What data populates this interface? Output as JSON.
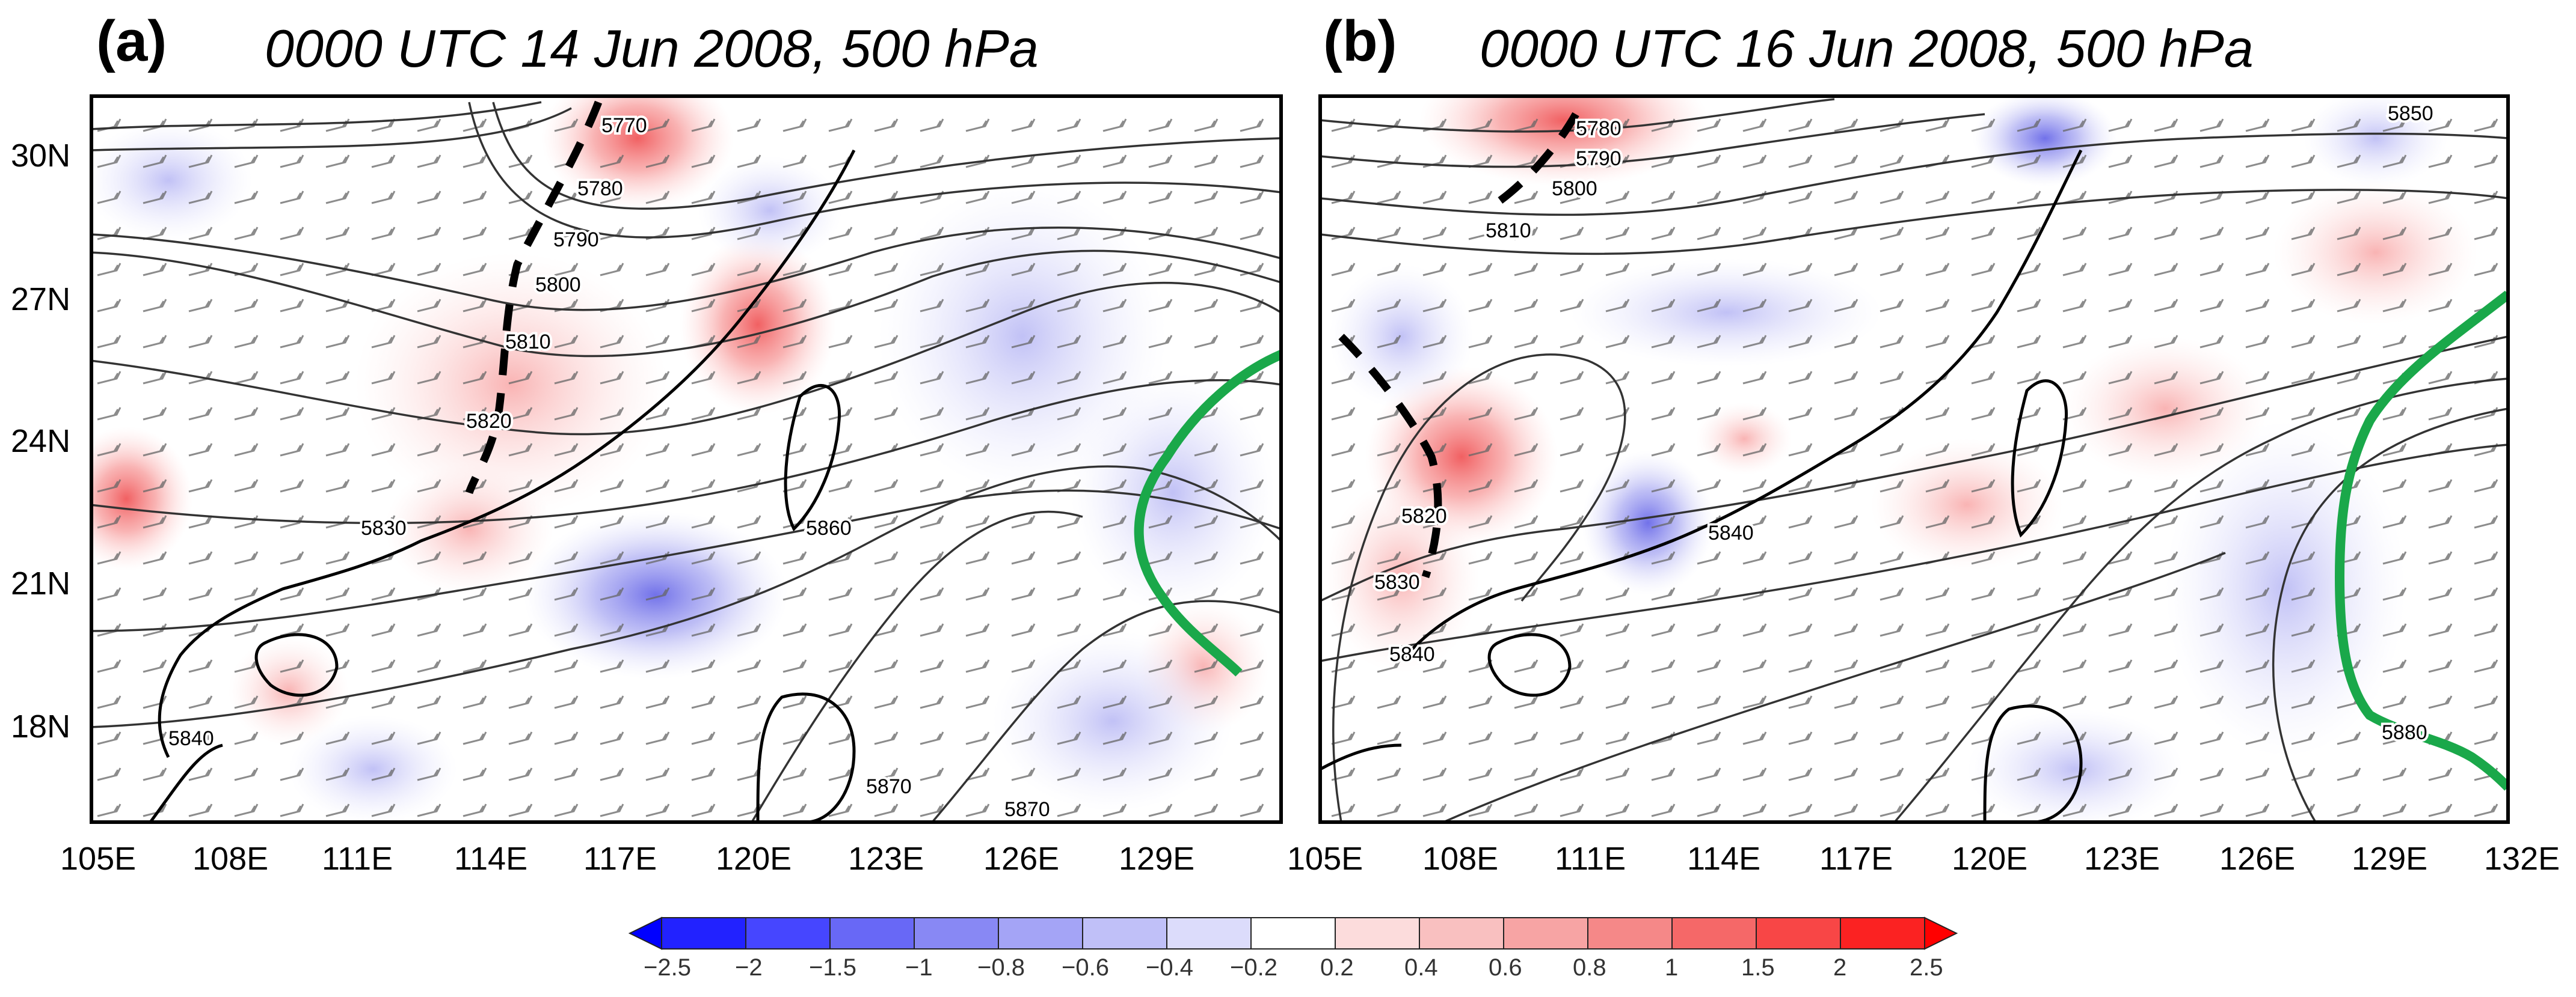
{
  "panels": [
    {
      "letter": "(a)",
      "title": "0000 UTC 14 Jun 2008, 500 hPa",
      "contour_labels": [
        "5770",
        "5780",
        "5790",
        "5800",
        "5810",
        "5820",
        "5830",
        "5840",
        "5860",
        "5870",
        "5870"
      ]
    },
    {
      "letter": "(b)",
      "title": "0000 UTC 16 Jun 2008, 500 hPa",
      "contour_labels": [
        "5780",
        "5790",
        "5800",
        "5810",
        "5820",
        "5830",
        "5840",
        "5840",
        "5850",
        "5880"
      ]
    }
  ],
  "axes": {
    "lat_ticks": [
      "30N",
      "27N",
      "24N",
      "21N",
      "18N"
    ],
    "lon_ticks_a": [
      "105E",
      "108E",
      "111E",
      "114E",
      "117E",
      "120E",
      "123E",
      "126E",
      "129E"
    ],
    "lon_ticks_b": [
      "105E",
      "108E",
      "111E",
      "114E",
      "117E",
      "120E",
      "123E",
      "126E",
      "129E",
      "132E"
    ]
  },
  "colorbar": {
    "ticks": [
      "−2.5",
      "−2",
      "−1.5",
      "−1",
      "−0.8",
      "−0.6",
      "−0.4",
      "−0.2",
      "0.2",
      "0.4",
      "0.6",
      "0.8",
      "1",
      "1.5",
      "2",
      "2.5"
    ]
  },
  "colors": {
    "negative": "#3b3bff",
    "positive": "#ff3b3b",
    "ridge_line": "#1aa84a",
    "trough_line": "#000000",
    "contour": "#333333"
  }
}
